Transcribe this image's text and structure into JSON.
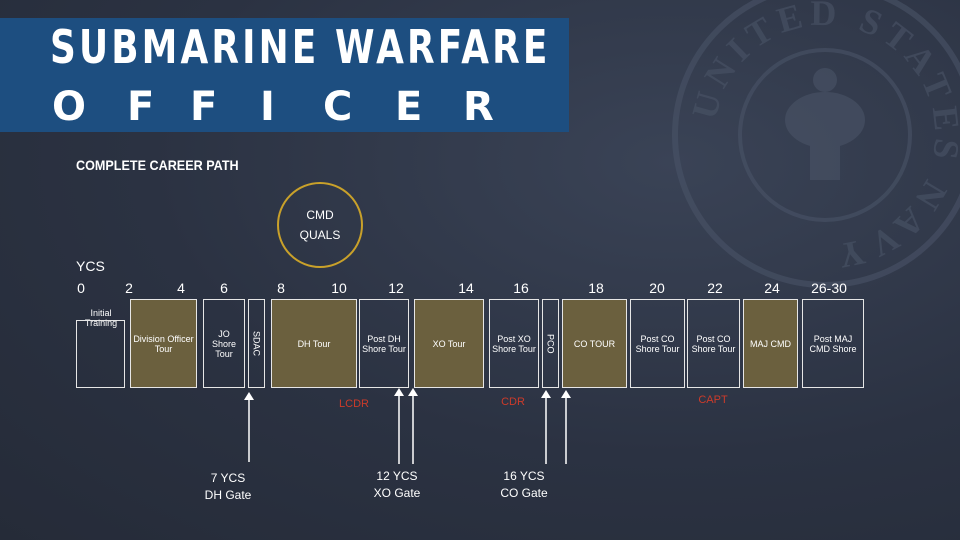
{
  "title": {
    "line1": "SUBMARINE WARFARE",
    "line2_letters": [
      "O",
      "F",
      "F",
      "I",
      "C",
      "E",
      "R"
    ]
  },
  "section_title": "COMPLETE CAREER PATH",
  "seal_text": "UNITED STATES NAVY",
  "cmd_quals": {
    "line1": "CMD",
    "line2": "QUALS"
  },
  "ycs_label": "YCS",
  "ticks": [
    "0",
    "2",
    "4",
    "6",
    "8",
    "10",
    "12",
    "14",
    "16",
    "18",
    "20",
    "22",
    "24",
    "26-30"
  ],
  "initial_training": "Initial Training",
  "tours": {
    "division_officer": "Division Officer Tour",
    "jo_shore": "JO Shore Tour",
    "sdac": "SDAC",
    "dh": "DH Tour",
    "post_dh_shore": "Post DH Shore Tour",
    "xo": "XO Tour",
    "post_xo_shore": "Post XO Shore Tour",
    "pco": "PCO",
    "co": "CO TOUR",
    "post_co_shore_1": "Post CO Shore Tour",
    "post_co_shore_2": "Post CO Shore Tour",
    "maj_cmd": "MAJ CMD",
    "post_maj_cmd_shore": "Post MAJ CMD Shore"
  },
  "ranks": {
    "lcdr": "LCDR",
    "cdr": "CDR",
    "capt": "CAPT"
  },
  "gates": {
    "dh": {
      "line1": "7 YCS",
      "line2": "DH Gate"
    },
    "xo": {
      "line1": "12 YCS",
      "line2": "XO Gate"
    },
    "co": {
      "line1": "16 YCS",
      "line2": "CO Gate"
    }
  },
  "colors": {
    "banner": "#1d4e80",
    "gold": "#6b603e",
    "gold_border": "#c9a12a",
    "rank": "#cc3b2a",
    "background": "#2b3242"
  }
}
